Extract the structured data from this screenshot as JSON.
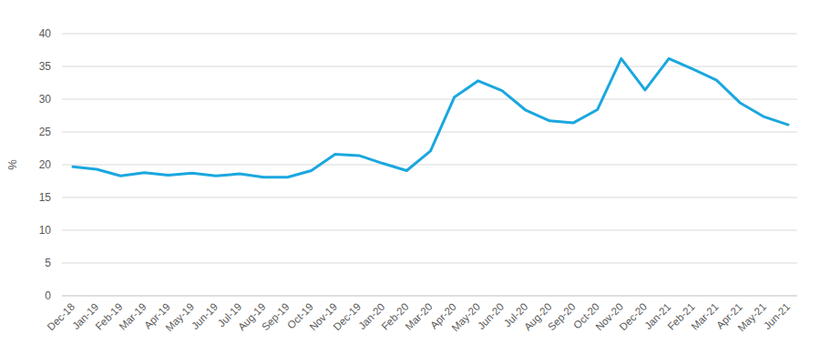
{
  "chart_data": {
    "type": "line",
    "ylabel": "%",
    "categories": [
      "Dec-18",
      "Jan-19",
      "Feb-19",
      "Mar-19",
      "Apr-19",
      "May-19",
      "Jun-19",
      "Jul-19",
      "Aug-19",
      "Sep-19",
      "Oct-19",
      "Nov-19",
      "Dec-19",
      "Jan-20",
      "Feb-20",
      "Mar-20",
      "Apr-20",
      "May-20",
      "Jun-20",
      "Jul-20",
      "Aug-20",
      "Sep-20",
      "Oct-20",
      "Nov-20",
      "Dec-20",
      "Jan-21",
      "Feb-21",
      "Mar-21",
      "Apr-21",
      "May-21",
      "Jun-21"
    ],
    "values": [
      19.7,
      19.3,
      18.3,
      18.8,
      18.4,
      18.7,
      18.3,
      18.6,
      18.1,
      18.1,
      19.1,
      21.6,
      21.4,
      20.2,
      19.1,
      22.1,
      30.3,
      32.8,
      31.3,
      28.3,
      26.7,
      26.4,
      28.4,
      36.2,
      31.4,
      36.2,
      34.6,
      32.9,
      29.4,
      27.3,
      26.1
    ],
    "color": "#1aa7df",
    "ylim": [
      0,
      40
    ],
    "yticks": [
      0,
      5,
      10,
      15,
      20,
      25,
      30,
      35,
      40
    ],
    "grid": true
  }
}
